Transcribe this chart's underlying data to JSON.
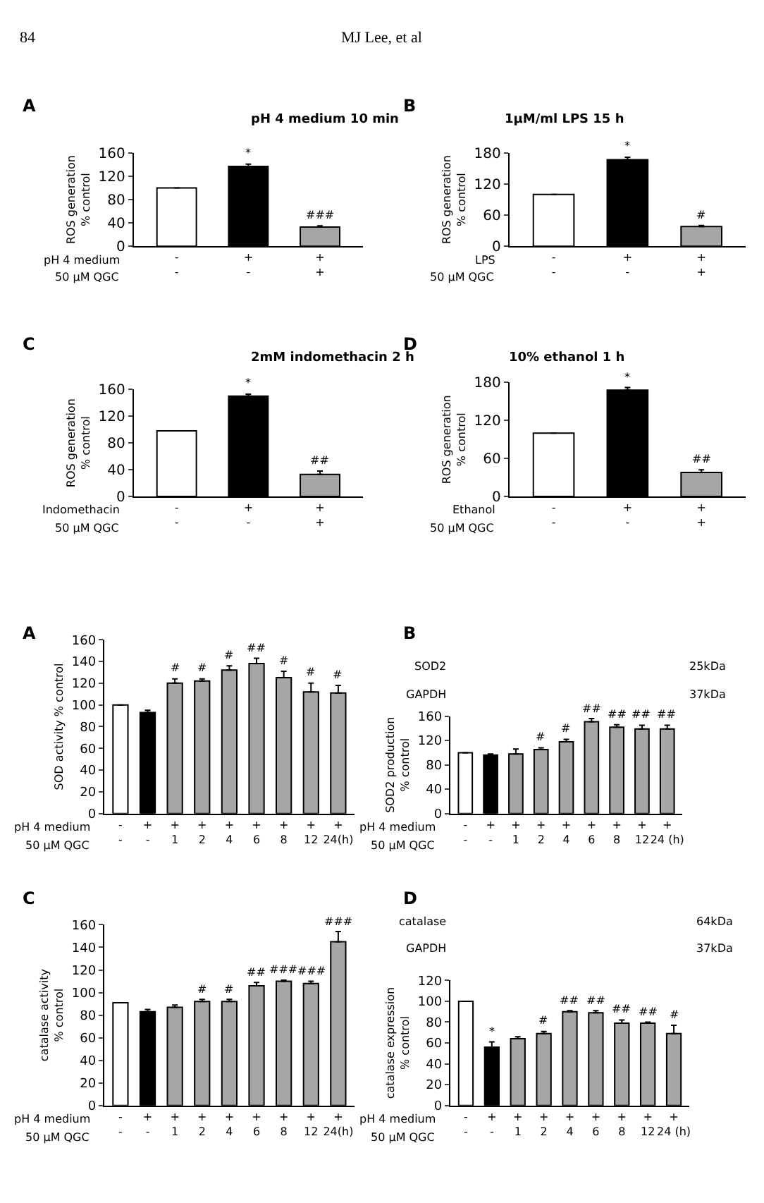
{
  "chart_data": [
    {
      "type": "other",
      "annotations": [
        "84",
        "MJ Lee, et al"
      ]
    },
    {
      "type": "bar",
      "title": "pH 4 medium 10 min",
      "ylabel": "ROS generation\n% control",
      "categories": [
        "-\n-",
        "+\n-",
        "+\n+"
      ],
      "values": [
        100,
        137,
        33
      ],
      "colors": [
        "#ffffff",
        "#000000",
        "#a6a6a6"
      ],
      "errors": [
        null,
        [
          137,
          141
        ],
        [
          33,
          35
        ]
      ],
      "value_labels": [
        null,
        "*",
        "###"
      ],
      "ylim": [
        0,
        160
      ],
      "yticks": [
        0,
        40,
        80,
        120,
        160
      ],
      "annotations": [
        "A",
        "pH 4 medium",
        "50 µM QGC"
      ]
    },
    {
      "type": "bar",
      "title": "1µM/ml LPS 15 h",
      "ylabel": "ROS generation\n% control",
      "categories": [
        "-\n-",
        "+\n-",
        "+\n+"
      ],
      "values": [
        100,
        167,
        38
      ],
      "colors": [
        "#ffffff",
        "#000000",
        "#a6a6a6"
      ],
      "errors": [
        null,
        [
          167,
          172
        ],
        [
          38,
          40
        ]
      ],
      "value_labels": [
        null,
        "*",
        "#"
      ],
      "ylim": [
        0,
        180
      ],
      "yticks": [
        0,
        60,
        120,
        180
      ],
      "annotations": [
        "B",
        "LPS",
        "50 µM QGC"
      ]
    },
    {
      "type": "bar",
      "title": "2mM indomethacin 2 h",
      "ylabel": "ROS generation\n% control",
      "categories": [
        "-\n-",
        "+\n-",
        "+\n+"
      ],
      "values": [
        98,
        150,
        33
      ],
      "colors": [
        "#ffffff",
        "#000000",
        "#a6a6a6"
      ],
      "errors": [
        null,
        [
          150,
          153
        ],
        [
          33,
          38
        ]
      ],
      "value_labels": [
        null,
        "*",
        "##"
      ],
      "ylim": [
        0,
        160
      ],
      "yticks": [
        0,
        40,
        80,
        120,
        160
      ],
      "annotations": [
        "C",
        "Indomethacin",
        "50 µM QGC"
      ]
    },
    {
      "type": "bar",
      "title": "10% ethanol 1 h",
      "ylabel": "ROS generation\n% control",
      "categories": [
        "-\n-",
        "+\n-",
        "+\n+"
      ],
      "values": [
        100,
        168,
        38
      ],
      "colors": [
        "#ffffff",
        "#000000",
        "#a6a6a6"
      ],
      "errors": [
        null,
        [
          168,
          172
        ],
        [
          38,
          42
        ]
      ],
      "value_labels": [
        null,
        "*",
        "##"
      ],
      "ylim": [
        0,
        180
      ],
      "yticks": [
        0,
        60,
        120,
        180
      ],
      "annotations": [
        "D",
        "Ethanol",
        "50 µM QGC"
      ]
    },
    {
      "type": "bar",
      "ylabel": "SOD activity % control",
      "categories": [
        "-\n-",
        "+\n-",
        "+\n1",
        "+\n2",
        "+\n4",
        "+\n6",
        "+\n8",
        "+\n12",
        "+\n24(h)"
      ],
      "values": [
        100,
        93,
        120,
        122,
        132,
        138,
        125,
        112,
        111
      ],
      "colors": [
        "#ffffff",
        "#000000",
        "#a6a6a6",
        "#a6a6a6",
        "#a6a6a6",
        "#a6a6a6",
        "#a6a6a6",
        "#a6a6a6",
        "#a6a6a6"
      ],
      "errors": [
        null,
        [
          93,
          95
        ],
        [
          120,
          124
        ],
        [
          122,
          124
        ],
        [
          132,
          136
        ],
        [
          138,
          143
        ],
        [
          125,
          131
        ],
        [
          112,
          120
        ],
        [
          111,
          118
        ]
      ],
      "value_labels": [
        null,
        null,
        "#",
        "#",
        "#",
        "##",
        "#",
        "#",
        "#"
      ],
      "ylim": [
        0,
        160
      ],
      "yticks": [
        0,
        20,
        40,
        60,
        80,
        100,
        120,
        140,
        160
      ],
      "annotations": [
        "A",
        "pH 4 medium",
        "50 µM QGC"
      ]
    },
    {
      "type": "bar",
      "ylabel": "SOD2 production\n% control",
      "categories": [
        "-\n-",
        "+\n-",
        "+\n1",
        "+\n2",
        "+\n4",
        "+\n6",
        "+\n8",
        "+\n12",
        "+\n24 (h)"
      ],
      "values": [
        100,
        96,
        98,
        105,
        118,
        151,
        142,
        139,
        139
      ],
      "colors": [
        "#ffffff",
        "#000000",
        "#a6a6a6",
        "#a6a6a6",
        "#a6a6a6",
        "#a6a6a6",
        "#a6a6a6",
        "#a6a6a6",
        "#a6a6a6"
      ],
      "errors": [
        null,
        [
          96,
          98
        ],
        [
          98,
          106
        ],
        [
          105,
          108
        ],
        [
          118,
          122
        ],
        [
          151,
          156
        ],
        [
          142,
          146
        ],
        [
          139,
          145
        ],
        [
          139,
          145
        ]
      ],
      "value_labels": [
        null,
        null,
        null,
        "#",
        "#",
        "##",
        "##",
        "##",
        "##"
      ],
      "ylim": [
        0,
        160
      ],
      "yticks": [
        0,
        40,
        80,
        120,
        160
      ],
      "annotations": [
        "B",
        "pH 4 medium",
        "50 µM QGC",
        "SOD2",
        "25kDa",
        "GAPDH",
        "37kDa"
      ]
    },
    {
      "type": "bar",
      "ylabel": "catalase activity\n% control",
      "categories": [
        "-\n-",
        "+\n-",
        "+\n1",
        "+\n2",
        "+\n4",
        "+\n6",
        "+\n8",
        "+\n12",
        "+\n24(h)"
      ],
      "values": [
        91,
        83,
        87,
        92,
        92,
        106,
        110,
        108,
        145
      ],
      "colors": [
        "#ffffff",
        "#000000",
        "#a6a6a6",
        "#a6a6a6",
        "#a6a6a6",
        "#a6a6a6",
        "#a6a6a6",
        "#a6a6a6",
        "#a6a6a6"
      ],
      "errors": [
        null,
        [
          83,
          85
        ],
        [
          87,
          89
        ],
        [
          92,
          94
        ],
        [
          92,
          94
        ],
        [
          106,
          109
        ],
        [
          110,
          111
        ],
        [
          108,
          110
        ],
        [
          145,
          154
        ]
      ],
      "value_labels": [
        null,
        null,
        null,
        "#",
        "#",
        "##",
        "###",
        "###",
        "###"
      ],
      "ylim": [
        0,
        160
      ],
      "yticks": [
        0,
        20,
        40,
        60,
        80,
        100,
        120,
        140,
        160
      ],
      "annotations": [
        "C",
        "pH 4 medium",
        "50 µM QGC"
      ]
    },
    {
      "type": "bar",
      "ylabel": "catalase expression\n% control",
      "categories": [
        "-\n-",
        "+\n-",
        "+\n1",
        "+\n2",
        "+\n4",
        "+\n6",
        "+\n8",
        "+\n12",
        "+\n24 (h)"
      ],
      "values": [
        100,
        56,
        64,
        69,
        90,
        89,
        79,
        79,
        69
      ],
      "colors": [
        "#ffffff",
        "#000000",
        "#a6a6a6",
        "#a6a6a6",
        "#a6a6a6",
        "#a6a6a6",
        "#a6a6a6",
        "#a6a6a6",
        "#a6a6a6"
      ],
      "errors": [
        null,
        [
          56,
          61
        ],
        [
          64,
          66
        ],
        [
          69,
          71
        ],
        [
          90,
          91
        ],
        [
          89,
          91
        ],
        [
          79,
          82
        ],
        [
          79,
          80
        ],
        [
          69,
          77
        ]
      ],
      "value_labels": [
        null,
        "*",
        null,
        "#",
        "##",
        "##",
        "##",
        "##",
        "#"
      ],
      "ylim": [
        0,
        120
      ],
      "yticks": [
        0,
        20,
        40,
        60,
        80,
        100,
        120
      ],
      "annotations": [
        "D",
        "pH 4 medium",
        "50 µM QGC",
        "catalase",
        "64kDa",
        "GAPDH",
        "37kDa"
      ]
    }
  ]
}
